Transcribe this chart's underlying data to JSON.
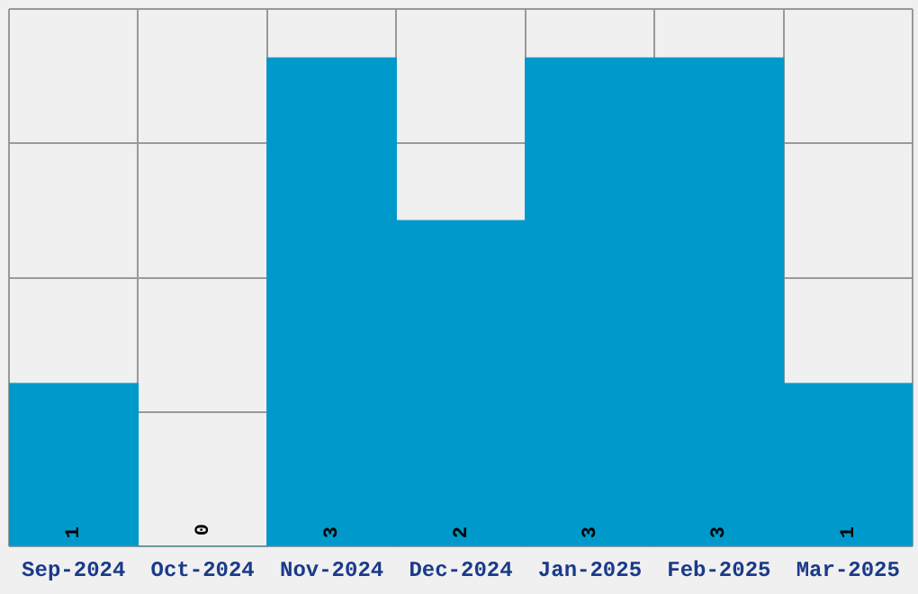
{
  "chart_data": {
    "type": "bar",
    "categories": [
      "Sep-2024",
      "Oct-2024",
      "Nov-2024",
      "Dec-2024",
      "Jan-2025",
      "Feb-2025",
      "Mar-2025"
    ],
    "values": [
      1,
      0,
      3,
      2,
      3,
      3,
      1
    ],
    "color": "#0099cc",
    "ylim": [
      0,
      3.3
    ],
    "yticks": [
      {
        "value": 0,
        "label": null
      },
      {
        "value": 0.825,
        "label": null
      },
      {
        "value": 1.65,
        "label": null
      },
      {
        "value": 2.475,
        "label": null
      },
      {
        "value": 3.3,
        "label": null
      }
    ],
    "grid": true,
    "tick_labels": "x",
    "data_labels": true
  }
}
